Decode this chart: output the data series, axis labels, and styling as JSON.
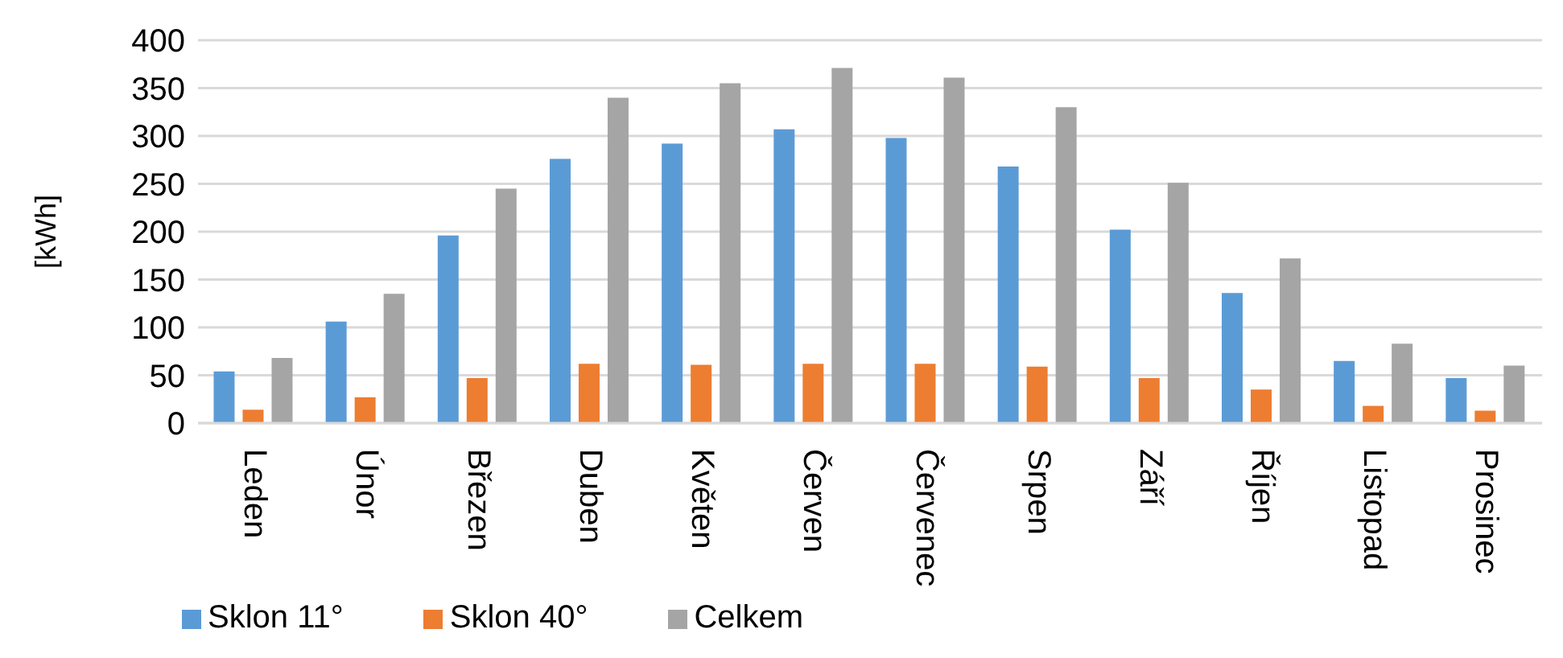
{
  "chart_data": {
    "type": "bar",
    "ylabel": "[kWh]",
    "categories": [
      "Leden",
      "Únor",
      "Březen",
      "Duben",
      "Květen",
      "Červen",
      "Červenec",
      "Srpen",
      "Září",
      "Říjen",
      "Listopad",
      "Prosinec"
    ],
    "series": [
      {
        "name": "Sklon 11°",
        "color": "#5b9bd5",
        "values": [
          54,
          106,
          196,
          276,
          292,
          307,
          298,
          268,
          202,
          136,
          65,
          47
        ]
      },
      {
        "name": "Sklon 40°",
        "color": "#ed7d31",
        "values": [
          14,
          27,
          47,
          62,
          61,
          62,
          62,
          59,
          47,
          35,
          18,
          13
        ]
      },
      {
        "name": "Celkem",
        "color": "#a5a5a5",
        "values": [
          68,
          135,
          245,
          340,
          355,
          371,
          361,
          330,
          251,
          172,
          83,
          60
        ]
      }
    ],
    "ylim": [
      0,
      400
    ],
    "yticks": [
      0,
      50,
      100,
      150,
      200,
      250,
      300,
      350,
      400
    ],
    "grid": "y",
    "legend": "bottom"
  }
}
